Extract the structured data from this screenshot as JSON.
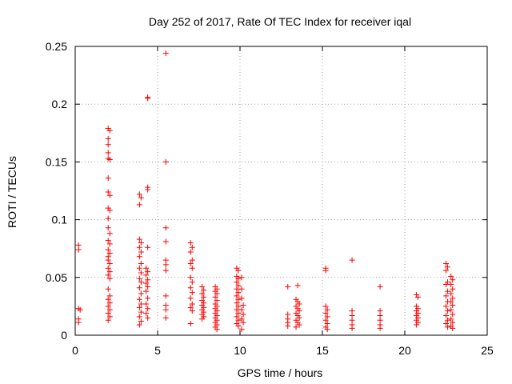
{
  "chart_data": {
    "type": "scatter",
    "title": "Day 252 of 2017, Rate Of TEC Index for receiver iqal",
    "xlabel": "GPS time / hours",
    "ylabel": "ROTI / TECUs",
    "xlim": [
      0,
      25
    ],
    "ylim": [
      0,
      0.25
    ],
    "xticks": [
      0,
      5,
      10,
      15,
      20,
      25
    ],
    "xtick_labels": [
      "0",
      "5",
      "10",
      "15",
      "20",
      "25"
    ],
    "yticks": [
      0,
      0.05,
      0.1,
      0.15,
      0.2,
      0.25
    ],
    "ytick_labels": [
      "0",
      "0.05",
      "0.1",
      "0.15",
      "0.2",
      "0.25"
    ],
    "grid": true,
    "marker": "+",
    "color": "#ff0000",
    "series": [
      {
        "name": "ROTI",
        "points": [
          [
            0.2,
            0.078
          ],
          [
            0.2,
            0.074
          ],
          [
            0.2,
            0.023
          ],
          [
            0.3,
            0.022
          ],
          [
            0.2,
            0.014
          ],
          [
            0.2,
            0.011
          ],
          [
            2.0,
            0.179
          ],
          [
            2.1,
            0.177
          ],
          [
            2.0,
            0.17
          ],
          [
            2.0,
            0.165
          ],
          [
            2.0,
            0.158
          ],
          [
            2.0,
            0.153
          ],
          [
            2.1,
            0.152
          ],
          [
            2.0,
            0.136
          ],
          [
            2.0,
            0.124
          ],
          [
            2.1,
            0.121
          ],
          [
            2.0,
            0.11
          ],
          [
            2.1,
            0.108
          ],
          [
            2.0,
            0.101
          ],
          [
            2.0,
            0.093
          ],
          [
            2.1,
            0.088
          ],
          [
            2.0,
            0.082
          ],
          [
            2.1,
            0.079
          ],
          [
            2.0,
            0.074
          ],
          [
            2.1,
            0.071
          ],
          [
            2.0,
            0.068
          ],
          [
            2.0,
            0.065
          ],
          [
            2.1,
            0.062
          ],
          [
            2.0,
            0.058
          ],
          [
            2.1,
            0.055
          ],
          [
            2.0,
            0.052
          ],
          [
            2.1,
            0.049
          ],
          [
            2.0,
            0.04
          ],
          [
            2.1,
            0.034
          ],
          [
            2.0,
            0.031
          ],
          [
            2.1,
            0.028
          ],
          [
            2.0,
            0.025
          ],
          [
            2.1,
            0.022
          ],
          [
            2.0,
            0.019
          ],
          [
            2.1,
            0.016
          ],
          [
            2.0,
            0.013
          ],
          [
            3.9,
            0.122
          ],
          [
            4.0,
            0.119
          ],
          [
            3.9,
            0.113
          ],
          [
            3.9,
            0.083
          ],
          [
            4.0,
            0.08
          ],
          [
            3.9,
            0.076
          ],
          [
            4.0,
            0.072
          ],
          [
            3.9,
            0.068
          ],
          [
            4.0,
            0.062
          ],
          [
            3.9,
            0.058
          ],
          [
            4.0,
            0.054
          ],
          [
            3.9,
            0.049
          ],
          [
            4.0,
            0.046
          ],
          [
            3.9,
            0.041
          ],
          [
            4.0,
            0.036
          ],
          [
            3.9,
            0.031
          ],
          [
            4.0,
            0.027
          ],
          [
            3.9,
            0.024
          ],
          [
            4.0,
            0.02
          ],
          [
            3.9,
            0.016
          ],
          [
            4.0,
            0.012
          ],
          [
            3.9,
            0.009
          ],
          [
            4.4,
            0.206
          ],
          [
            4.4,
            0.205
          ],
          [
            4.4,
            0.128
          ],
          [
            4.4,
            0.126
          ],
          [
            4.4,
            0.076
          ],
          [
            4.3,
            0.058
          ],
          [
            4.4,
            0.055
          ],
          [
            4.3,
            0.052
          ],
          [
            4.4,
            0.048
          ],
          [
            4.3,
            0.045
          ],
          [
            4.4,
            0.042
          ],
          [
            4.3,
            0.038
          ],
          [
            4.4,
            0.032
          ],
          [
            4.3,
            0.027
          ],
          [
            4.4,
            0.023
          ],
          [
            4.3,
            0.019
          ],
          [
            4.4,
            0.015
          ],
          [
            5.5,
            0.244
          ],
          [
            5.5,
            0.15
          ],
          [
            5.5,
            0.093
          ],
          [
            5.5,
            0.081
          ],
          [
            5.5,
            0.065
          ],
          [
            5.5,
            0.061
          ],
          [
            5.5,
            0.056
          ],
          [
            5.5,
            0.034
          ],
          [
            5.5,
            0.026
          ],
          [
            5.5,
            0.022
          ],
          [
            5.5,
            0.015
          ],
          [
            7.0,
            0.08
          ],
          [
            7.1,
            0.076
          ],
          [
            7.0,
            0.072
          ],
          [
            7.1,
            0.065
          ],
          [
            7.0,
            0.062
          ],
          [
            7.1,
            0.058
          ],
          [
            7.0,
            0.05
          ],
          [
            7.1,
            0.046
          ],
          [
            7.0,
            0.041
          ],
          [
            7.1,
            0.037
          ],
          [
            7.0,
            0.032
          ],
          [
            7.1,
            0.027
          ],
          [
            7.0,
            0.024
          ],
          [
            7.1,
            0.021
          ],
          [
            7.0,
            0.01
          ],
          [
            7.7,
            0.042
          ],
          [
            7.8,
            0.039
          ],
          [
            7.7,
            0.036
          ],
          [
            7.8,
            0.033
          ],
          [
            7.7,
            0.03
          ],
          [
            7.8,
            0.028
          ],
          [
            7.7,
            0.026
          ],
          [
            7.8,
            0.024
          ],
          [
            7.7,
            0.022
          ],
          [
            7.8,
            0.02
          ],
          [
            7.7,
            0.018
          ],
          [
            7.8,
            0.016
          ],
          [
            7.7,
            0.014
          ],
          [
            8.5,
            0.042
          ],
          [
            8.6,
            0.04
          ],
          [
            8.5,
            0.038
          ],
          [
            8.6,
            0.036
          ],
          [
            8.5,
            0.033
          ],
          [
            8.6,
            0.03
          ],
          [
            8.5,
            0.027
          ],
          [
            8.6,
            0.025
          ],
          [
            8.5,
            0.023
          ],
          [
            8.6,
            0.021
          ],
          [
            8.5,
            0.019
          ],
          [
            8.6,
            0.017
          ],
          [
            8.5,
            0.015
          ],
          [
            8.6,
            0.013
          ],
          [
            8.5,
            0.011
          ],
          [
            8.6,
            0.009
          ],
          [
            8.5,
            0.007
          ],
          [
            8.6,
            0.005
          ],
          [
            9.8,
            0.058
          ],
          [
            9.9,
            0.056
          ],
          [
            9.8,
            0.051
          ],
          [
            9.9,
            0.049
          ],
          [
            9.8,
            0.046
          ],
          [
            9.9,
            0.043
          ],
          [
            9.8,
            0.04
          ],
          [
            9.9,
            0.037
          ],
          [
            9.8,
            0.034
          ],
          [
            9.9,
            0.031
          ],
          [
            9.8,
            0.028
          ],
          [
            9.9,
            0.025
          ],
          [
            9.8,
            0.022
          ],
          [
            9.9,
            0.019
          ],
          [
            9.8,
            0.016
          ],
          [
            9.9,
            0.013
          ],
          [
            9.8,
            0.01
          ],
          [
            9.9,
            0.008
          ],
          [
            10.1,
            0.05
          ],
          [
            10.1,
            0.04
          ],
          [
            10.1,
            0.032
          ],
          [
            10.2,
            0.026
          ],
          [
            10.1,
            0.022
          ],
          [
            10.2,
            0.018
          ],
          [
            10.1,
            0.014
          ],
          [
            10.2,
            0.011
          ],
          [
            10.1,
            0.005
          ],
          [
            12.9,
            0.042
          ],
          [
            12.9,
            0.018
          ],
          [
            12.9,
            0.014
          ],
          [
            12.9,
            0.011
          ],
          [
            12.9,
            0.008
          ],
          [
            13.4,
            0.031
          ],
          [
            13.5,
            0.029
          ],
          [
            13.6,
            0.027
          ],
          [
            13.4,
            0.025
          ],
          [
            13.5,
            0.023
          ],
          [
            13.6,
            0.021
          ],
          [
            13.4,
            0.019
          ],
          [
            13.5,
            0.017
          ],
          [
            13.6,
            0.015
          ],
          [
            13.4,
            0.013
          ],
          [
            13.5,
            0.011
          ],
          [
            13.6,
            0.009
          ],
          [
            13.4,
            0.007
          ],
          [
            13.5,
            0.043
          ],
          [
            15.2,
            0.058
          ],
          [
            15.2,
            0.056
          ],
          [
            15.2,
            0.025
          ],
          [
            15.3,
            0.022
          ],
          [
            15.2,
            0.019
          ],
          [
            15.3,
            0.016
          ],
          [
            15.2,
            0.013
          ],
          [
            15.3,
            0.01
          ],
          [
            15.2,
            0.007
          ],
          [
            15.3,
            0.005
          ],
          [
            16.8,
            0.065
          ],
          [
            16.8,
            0.021
          ],
          [
            16.8,
            0.017
          ],
          [
            16.8,
            0.013
          ],
          [
            16.8,
            0.009
          ],
          [
            16.8,
            0.006
          ],
          [
            18.5,
            0.042
          ],
          [
            18.5,
            0.021
          ],
          [
            18.5,
            0.017
          ],
          [
            18.5,
            0.013
          ],
          [
            18.5,
            0.009
          ],
          [
            18.5,
            0.006
          ],
          [
            20.7,
            0.035
          ],
          [
            20.8,
            0.033
          ],
          [
            20.7,
            0.025
          ],
          [
            20.8,
            0.023
          ],
          [
            20.7,
            0.021
          ],
          [
            20.8,
            0.019
          ],
          [
            20.7,
            0.017
          ],
          [
            20.8,
            0.015
          ],
          [
            20.7,
            0.013
          ],
          [
            20.8,
            0.011
          ],
          [
            20.7,
            0.009
          ],
          [
            22.5,
            0.062
          ],
          [
            22.6,
            0.059
          ],
          [
            22.5,
            0.056
          ],
          [
            22.6,
            0.046
          ],
          [
            22.5,
            0.044
          ],
          [
            22.6,
            0.038
          ],
          [
            22.5,
            0.034
          ],
          [
            22.6,
            0.029
          ],
          [
            22.5,
            0.025
          ],
          [
            22.6,
            0.021
          ],
          [
            22.5,
            0.017
          ],
          [
            22.6,
            0.013
          ],
          [
            22.5,
            0.01
          ],
          [
            22.6,
            0.007
          ],
          [
            22.8,
            0.051
          ],
          [
            22.9,
            0.048
          ],
          [
            22.8,
            0.044
          ],
          [
            22.9,
            0.04
          ],
          [
            22.8,
            0.036
          ],
          [
            22.9,
            0.032
          ],
          [
            22.8,
            0.029
          ],
          [
            22.9,
            0.026
          ],
          [
            22.8,
            0.022
          ],
          [
            22.9,
            0.018
          ],
          [
            22.8,
            0.014
          ],
          [
            22.9,
            0.011
          ],
          [
            22.8,
            0.008
          ],
          [
            22.9,
            0.006
          ]
        ]
      }
    ]
  }
}
